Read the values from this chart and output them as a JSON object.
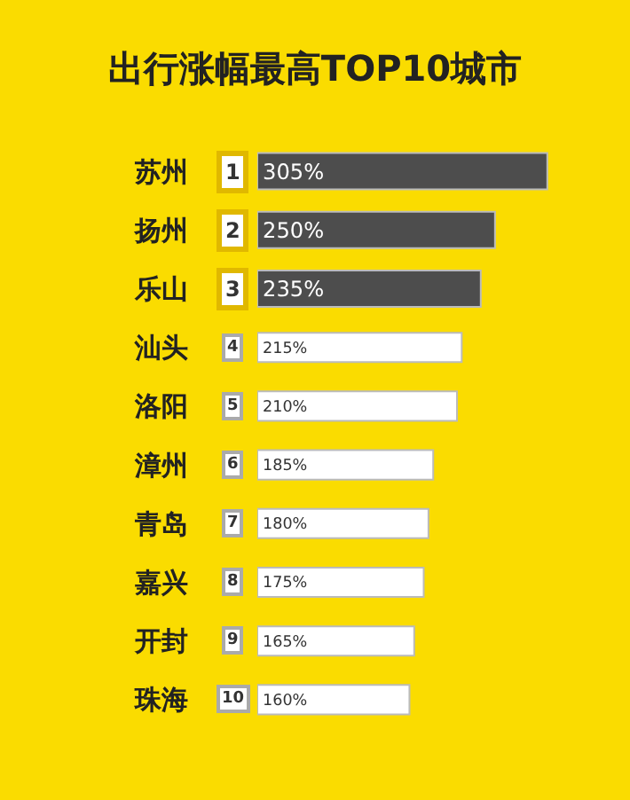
{
  "chart_data": {
    "type": "bar",
    "orientation": "horizontal",
    "title": "出行涨幅最高TOP10城市",
    "categories": [
      "苏州",
      "扬州",
      "乐山",
      "汕头",
      "洛阳",
      "漳州",
      "青岛",
      "嘉兴",
      "开封",
      "珠海"
    ],
    "values": [
      305,
      250,
      235,
      215,
      210,
      185,
      180,
      175,
      165,
      160
    ],
    "value_labels": [
      "305%",
      "250%",
      "235%",
      "215%",
      "210%",
      "185%",
      "180%",
      "175%",
      "165%",
      "160%"
    ],
    "colors": [
      "#4d4d4d",
      "#4d4d4d",
      "#4d4d4d",
      "#ffffff",
      "#ffffff",
      "#ffffff",
      "#ffffff",
      "#ffffff",
      "#ffffff",
      "#ffffff"
    ],
    "annotations": [
      "1",
      "2",
      "3",
      "4",
      "5",
      "6",
      "7",
      "8",
      "9",
      "10"
    ]
  }
}
